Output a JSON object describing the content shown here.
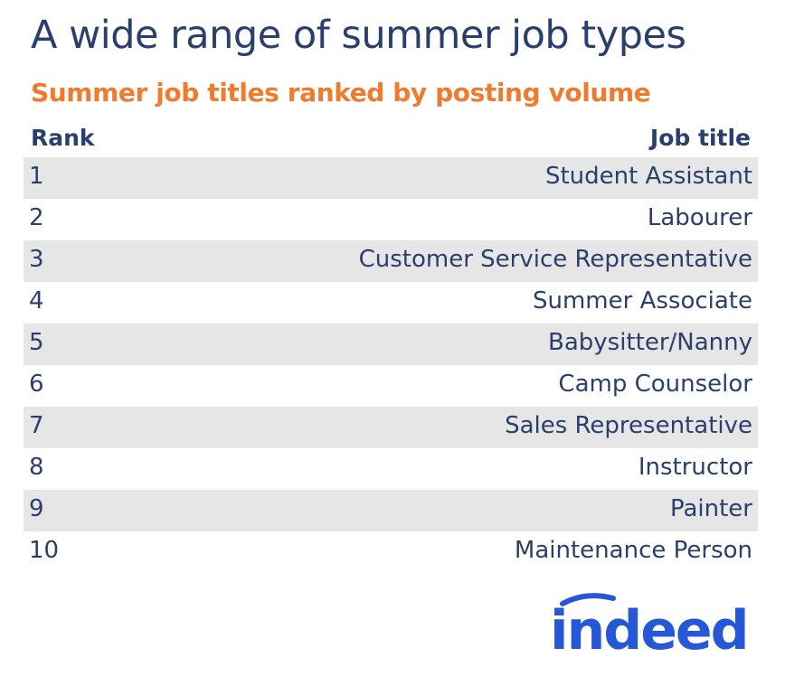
{
  "title": "A wide range of summer job types",
  "subtitle": "Summer job titles ranked by posting volume",
  "colors": {
    "title": "#2b3f6c",
    "subtitle": "#f07b2d",
    "row_shade": "#e6e6e6",
    "logo": "#2557d6"
  },
  "chart_data": {
    "type": "table",
    "title": "A wide range of summer job types",
    "subtitle": "Summer job titles ranked by posting volume",
    "columns": [
      "Rank",
      "Job title"
    ],
    "rows": [
      {
        "rank": "1",
        "job": "Student Assistant"
      },
      {
        "rank": "2",
        "job": "Labourer"
      },
      {
        "rank": "3",
        "job": "Customer Service Representative"
      },
      {
        "rank": "4",
        "job": "Summer Associate"
      },
      {
        "rank": "5",
        "job": "Babysitter/Nanny"
      },
      {
        "rank": "6",
        "job": "Camp Counselor"
      },
      {
        "rank": "7",
        "job": "Sales Representative"
      },
      {
        "rank": "8",
        "job": "Instructor"
      },
      {
        "rank": "9",
        "job": "Painter"
      },
      {
        "rank": "10",
        "job": "Maintenance Person"
      }
    ]
  },
  "logo": {
    "text": "indeed",
    "icon": "indeed-logo"
  }
}
